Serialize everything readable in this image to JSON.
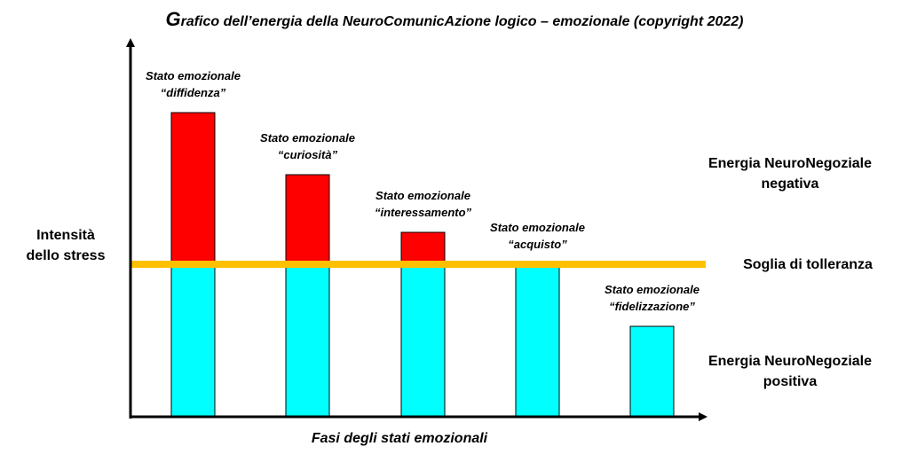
{
  "title": {
    "first_letter": "G",
    "rest": "rafico dell’energia della NeuroComunicAzione logico – emozionale (copyright 2022)"
  },
  "ylabel": {
    "line1": "Intensità",
    "line2": "dello stress"
  },
  "xlabel": "Fasi degli stati  emozionali",
  "threshold_label": "Soglia di tolleranza",
  "negative_label": {
    "line1": "Energia NeuroNegoziale",
    "line2": "negativa"
  },
  "positive_label": {
    "line1": "Energia NeuroNegoziale",
    "line2": "positiva"
  },
  "colors": {
    "negative_bar": "#ff0000",
    "positive_bar": "#00ffff",
    "threshold_line": "#ffc000",
    "axis": "#000000"
  },
  "chart_data": {
    "type": "bar",
    "threshold": 172,
    "ylim": [
      0,
      350
    ],
    "categories": [
      {
        "line1": "Stato emozionale",
        "line2": "“diffidenza”",
        "value": 343
      },
      {
        "line1": "Stato emozionale",
        "line2": "“curiosità”",
        "value": 273
      },
      {
        "line1": "Stato emozionale",
        "line2": "“interessamento”",
        "value": 208
      },
      {
        "line1": "Stato emozionale",
        "line2": "“acquisto”",
        "value": 172
      },
      {
        "line1": "Stato emozionale",
        "line2": "“fidelizzazione”",
        "value": 102
      }
    ],
    "xlabel": "Fasi degli stati  emozionali",
    "ylabel": "Intensità dello stress",
    "grid": false
  }
}
